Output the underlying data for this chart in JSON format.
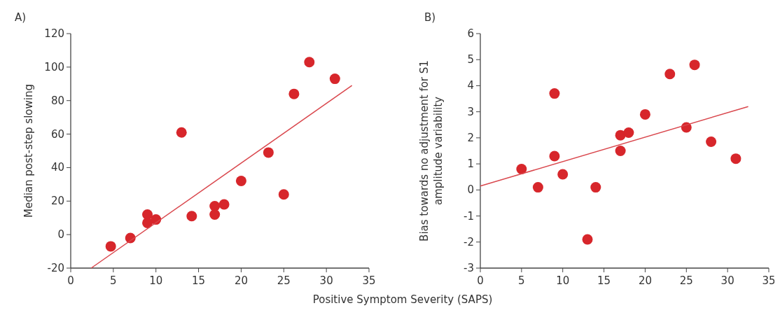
{
  "chart_data": [
    {
      "type": "scatter",
      "title": "A)",
      "ylabel": "Median post-step slowing",
      "xlabel": "Positive Symptom Severity (SAPS)",
      "xlim": [
        0,
        35
      ],
      "xticks": [
        0,
        5,
        10,
        15,
        20,
        25,
        30,
        35
      ],
      "ylim": [
        -20,
        120
      ],
      "yticks": [
        -20,
        0,
        20,
        40,
        60,
        80,
        100,
        120
      ],
      "series": [
        {
          "color": "#d7262b",
          "marker": "circle",
          "x": [
            4.7,
            7,
            9,
            9,
            10,
            13,
            14.2,
            16.9,
            16.9,
            18,
            20,
            23.2,
            25,
            26.2,
            28,
            31
          ],
          "values": [
            -7,
            -2,
            12,
            7,
            9,
            61,
            11,
            17,
            12,
            18,
            32,
            49,
            24,
            84,
            103,
            93
          ]
        },
        {
          "type": "line",
          "color": "#d9464c",
          "x": [
            2.4,
            33
          ],
          "values": [
            -20,
            89
          ]
        }
      ]
    },
    {
      "type": "scatter",
      "title": "B)",
      "ylabel": "Bias towards no adjustment for S1 amplitude variability",
      "xlim": [
        0,
        35
      ],
      "xticks": [
        0,
        5,
        10,
        15,
        20,
        25,
        30,
        35
      ],
      "ylim": [
        -3,
        6
      ],
      "yticks": [
        -3,
        -2,
        -1,
        0,
        1,
        2,
        3,
        4,
        5,
        6
      ],
      "series": [
        {
          "color": "#d7262b",
          "marker": "circle",
          "x": [
            5,
            7,
            9,
            9,
            10,
            13,
            14,
            17,
            17,
            18,
            20,
            23,
            25,
            26,
            28,
            31
          ],
          "values": [
            0.8,
            0.1,
            3.7,
            1.3,
            0.6,
            -1.9,
            0.1,
            2.1,
            1.5,
            2.2,
            2.9,
            4.45,
            2.4,
            4.8,
            1.85,
            1.2
          ]
        },
        {
          "type": "line",
          "color": "#d9464c",
          "x": [
            0,
            32.5
          ],
          "values": [
            0.15,
            3.2
          ]
        }
      ]
    }
  ]
}
